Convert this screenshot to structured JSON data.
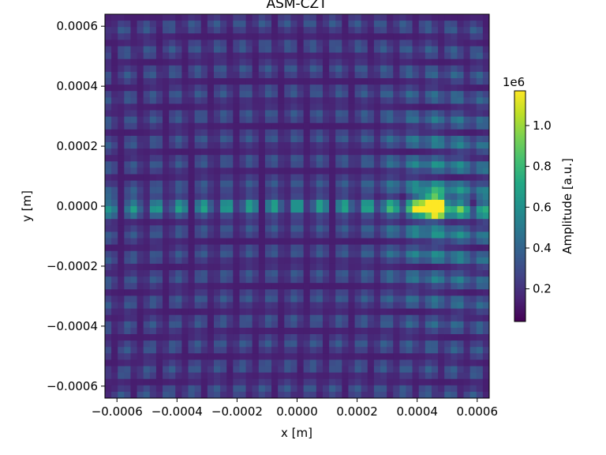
{
  "chart_data": {
    "type": "heatmap",
    "title": "ASM-CZT",
    "xlabel": "x [m]",
    "ylabel": "y [m]",
    "xlim": [
      -0.00064,
      0.00064
    ],
    "ylim": [
      -0.00064,
      0.00064
    ],
    "x_ticks": [
      -0.0006,
      -0.0004,
      -0.0002,
      0.0,
      0.0002,
      0.0004,
      0.0006
    ],
    "x_tick_labels": [
      "−0.0006",
      "−0.0004",
      "−0.0002",
      "0.0000",
      "0.0002",
      "0.0004",
      "0.0006"
    ],
    "y_ticks": [
      0.0006,
      0.0004,
      0.0002,
      0.0,
      -0.0002,
      -0.0004,
      -0.0006
    ],
    "y_tick_labels": [
      "0.0006",
      "0.0004",
      "0.0002",
      "0.0000",
      "−0.0002",
      "−0.0004",
      "−0.0006"
    ],
    "colormap": "viridis",
    "colorbar": {
      "label": "Amplitude [a.u.]",
      "exponent_label": "1e6",
      "range": [
        40000,
        1170000
      ],
      "ticks": [
        0.2,
        0.4,
        0.6,
        0.8,
        1.0
      ],
      "tick_labels": [
        "0.2",
        "0.4",
        "0.6",
        "0.8",
        "1.0"
      ]
    },
    "peak": {
      "x": 0.00045,
      "y": 0.0,
      "amplitude": 1170000
    },
    "grid": false
  }
}
